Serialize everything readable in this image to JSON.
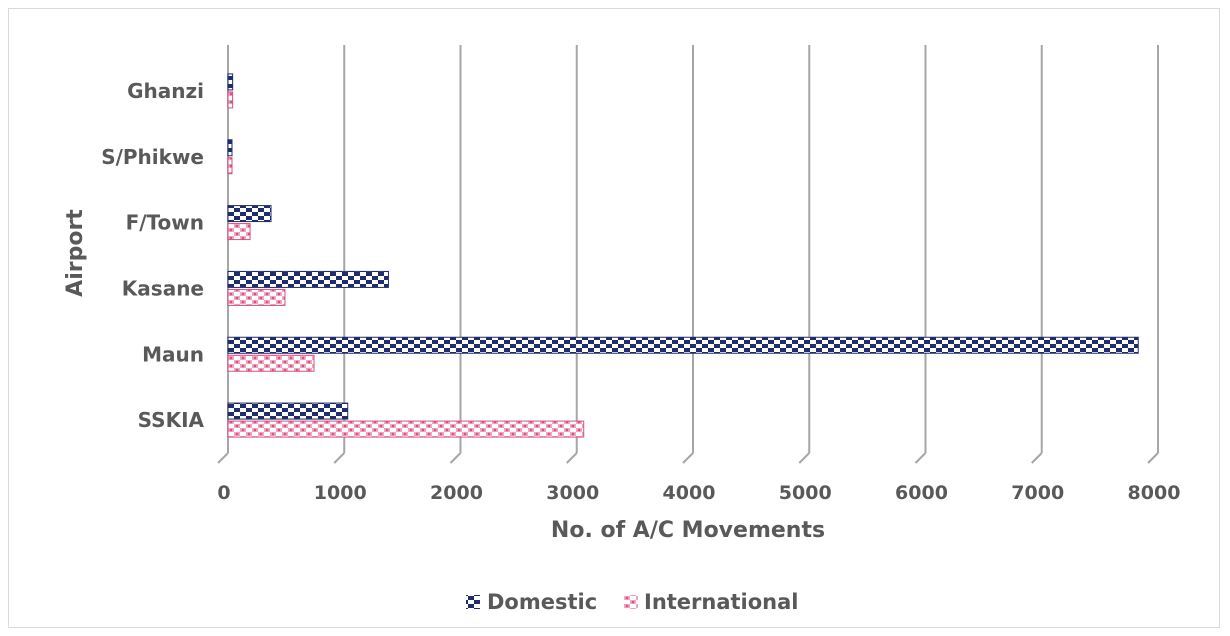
{
  "chart_data": {
    "type": "bar",
    "orientation": "horizontal",
    "categories": [
      "SSKIA",
      "Maun",
      "Kasane",
      "F/Town",
      "S/Phikwe",
      "Ghanzi"
    ],
    "series": [
      {
        "name": "Domestic",
        "values": [
          1030,
          7830,
          1380,
          370,
          30,
          40
        ],
        "color": "#1f2d6b",
        "pattern": "checker"
      },
      {
        "name": "International",
        "values": [
          3060,
          740,
          490,
          190,
          30,
          40
        ],
        "color": "#e8739a",
        "pattern": "checker"
      }
    ],
    "xlabel": "No. of A/C Movements",
    "ylabel": "Airport",
    "xlim": [
      0,
      8000
    ],
    "xticks": [
      "0",
      "1000",
      "2000",
      "3000",
      "4000",
      "5000",
      "6000",
      "7000",
      "8000"
    ],
    "grid": true,
    "legend": "bottom"
  }
}
